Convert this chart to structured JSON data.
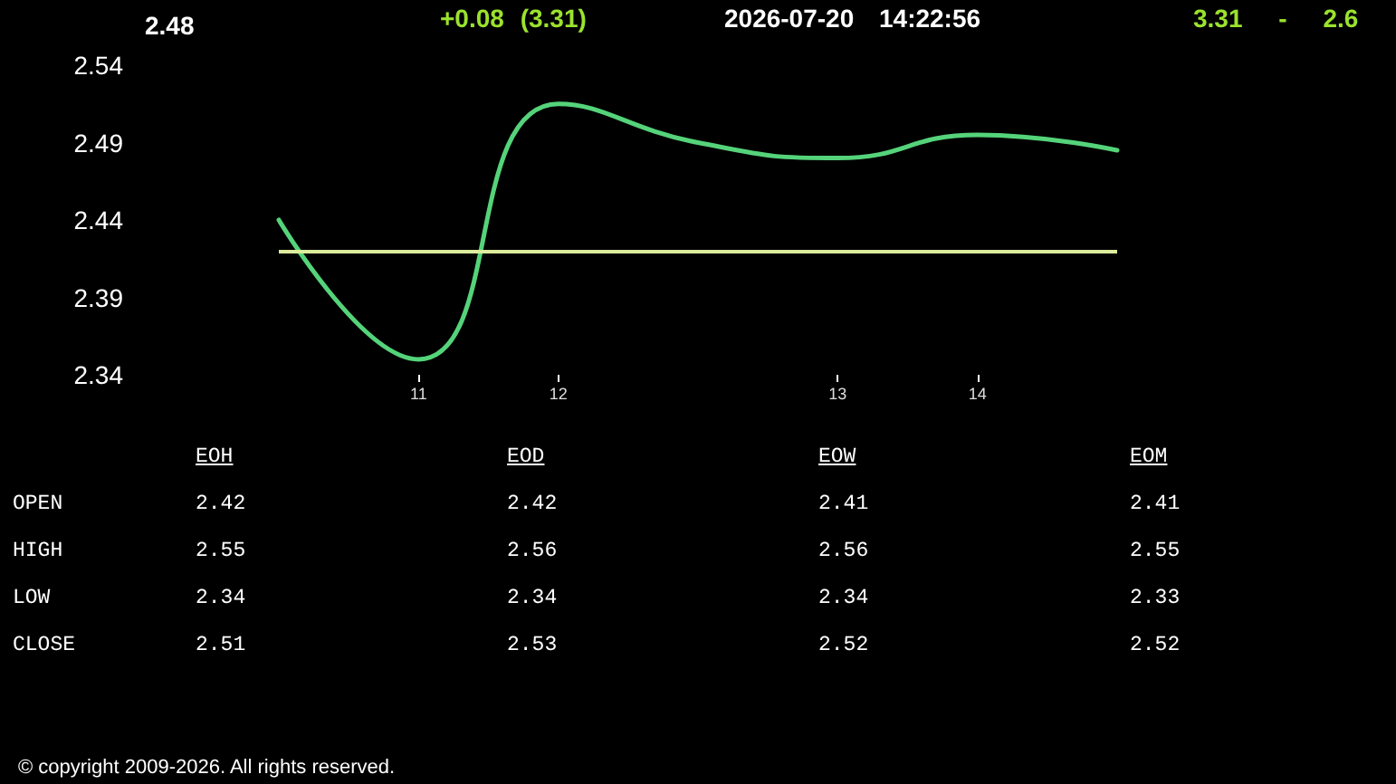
{
  "chart_data": [
    {
      "type": "line",
      "title": "2.48",
      "annotations": [
        "+0.08 (3.31)",
        "2026-07-20 14:22:56",
        "3.31 - 2.6"
      ],
      "categories": [
        null,
        "11",
        "12",
        null,
        "13",
        "14",
        null
      ],
      "series": [
        {
          "color": "#55d37a",
          "values": [
            2.44,
            2.35,
            2.515,
            2.49,
            2.48,
            2.495,
            2.485
          ]
        }
      ],
      "ylim": [
        2.34,
        2.54
      ],
      "yticks": [
        2.34,
        2.39,
        2.44,
        2.49,
        2.54
      ],
      "ref_lines": [
        {
          "axis": "y",
          "value": 2.42,
          "color": "#dcec9c"
        }
      ],
      "marker": "none",
      "line_style": "solid"
    },
    {
      "type": "other",
      "categories": [
        "EOH",
        "EOD",
        "EOW",
        "EOM"
      ],
      "y_categories": [
        "OPEN",
        "HIGH",
        "LOW",
        "CLOSE"
      ],
      "cell_labels": [
        [
          "2.42",
          "2.42",
          "2.41",
          "2.41"
        ],
        [
          "2.55",
          "2.56",
          "2.56",
          "2.55"
        ],
        [
          "2.34",
          "2.34",
          "2.34",
          "2.33"
        ],
        [
          "2.51",
          "2.53",
          "2.52",
          "2.52"
        ]
      ],
      "annotations": [
        "© copyright 2009-2026. All rights reserved."
      ]
    }
  ]
}
